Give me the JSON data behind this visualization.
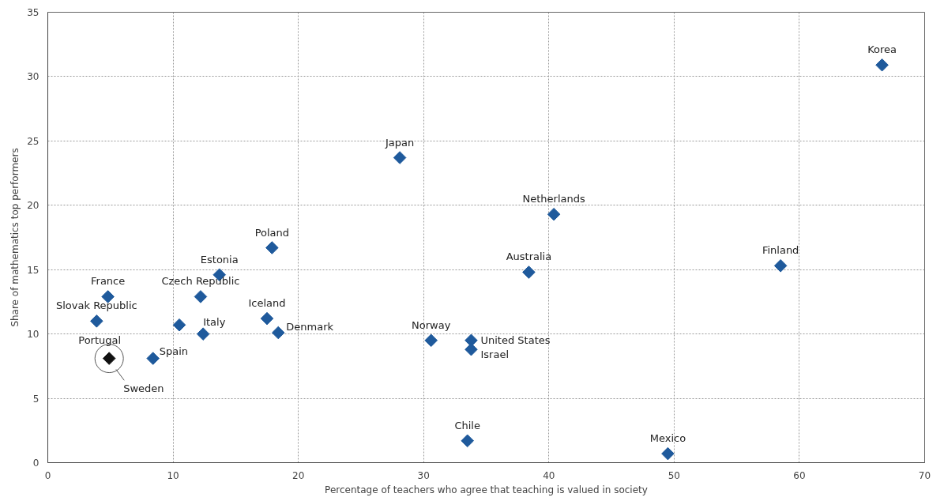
{
  "chart_data": {
    "type": "scatter",
    "xlabel": "Percentage of teachers who agree that teaching is valued in society",
    "ylabel": "Share of mathematics top performers",
    "marker": "diamond",
    "grid": true,
    "xlim": [
      0,
      70
    ],
    "ylim": [
      0,
      35
    ],
    "xticks": [
      0,
      10,
      20,
      30,
      40,
      50,
      60,
      70
    ],
    "yticks": [
      0,
      5,
      10,
      15,
      20,
      25,
      30,
      35
    ],
    "series": [
      {
        "color": "#1f5a9c",
        "x": [
          3.9,
          4.8,
          4.9,
          8.4,
          10.5,
          12.2,
          12.4,
          13.7,
          17.5,
          17.9,
          18.4,
          28.1,
          30.6,
          33.5,
          33.8,
          33.8,
          38.4,
          40.4,
          49.5,
          58.5,
          66.6
        ],
        "values": [
          11.0,
          12.9,
          8.1,
          8.1,
          10.7,
          12.9,
          10.0,
          14.6,
          11.2,
          16.7,
          10.1,
          23.7,
          9.5,
          1.7,
          9.5,
          8.8,
          14.8,
          19.3,
          0.7,
          15.3,
          30.9
        ],
        "colors": [
          "#1f5a9c",
          "#1f5a9c",
          "#111111",
          "#1f5a9c",
          "#1f5a9c",
          "#1f5a9c",
          "#1f5a9c",
          "#1f5a9c",
          "#1f5a9c",
          "#1f5a9c",
          "#1f5a9c",
          "#1f5a9c",
          "#1f5a9c",
          "#1f5a9c",
          "#1f5a9c",
          "#1f5a9c",
          "#1f5a9c",
          "#1f5a9c",
          "#1f5a9c",
          "#1f5a9c",
          "#1f5a9c"
        ]
      }
    ],
    "annotations": [
      {
        "text": "Slovak Republic",
        "x": 3.9,
        "y": 11.0
      },
      {
        "text": "France",
        "x": 4.8,
        "y": 12.9
      },
      {
        "text": "Portugal",
        "x": 4.9,
        "y": 8.1
      },
      {
        "text": "Sweden",
        "x": 4.9,
        "y": 8.1
      },
      {
        "text": "Spain",
        "x": 8.4,
        "y": 8.1
      },
      {
        "text": "Czech Republic",
        "x": 12.2,
        "y": 12.9
      },
      {
        "text": "Italy",
        "x": 12.4,
        "y": 10.0
      },
      {
        "text": "Estonia",
        "x": 13.7,
        "y": 14.6
      },
      {
        "text": "Iceland",
        "x": 17.5,
        "y": 11.2
      },
      {
        "text": "Poland",
        "x": 17.9,
        "y": 16.7
      },
      {
        "text": "Denmark",
        "x": 18.4,
        "y": 10.1
      },
      {
        "text": "Japan",
        "x": 28.1,
        "y": 23.7
      },
      {
        "text": "Norway",
        "x": 30.6,
        "y": 9.5
      },
      {
        "text": "Chile",
        "x": 33.5,
        "y": 1.7
      },
      {
        "text": "United States",
        "x": 33.8,
        "y": 9.5
      },
      {
        "text": "Israel",
        "x": 33.8,
        "y": 8.8
      },
      {
        "text": "Australia",
        "x": 38.4,
        "y": 14.8
      },
      {
        "text": "Netherlands",
        "x": 40.4,
        "y": 19.3
      },
      {
        "text": "Mexico",
        "x": 49.5,
        "y": 0.7
      },
      {
        "text": "Finland",
        "x": 58.5,
        "y": 15.3
      },
      {
        "text": "Korea",
        "x": 66.6,
        "y": 30.9
      }
    ]
  }
}
